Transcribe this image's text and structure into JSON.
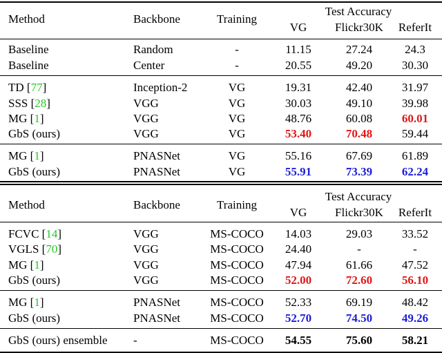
{
  "header": {
    "method": "Method",
    "backbone": "Backbone",
    "training": "Training",
    "test_accuracy": "Test Accuracy",
    "vg": "VG",
    "flickr": "Flickr30K",
    "referit": "ReferIt"
  },
  "top_rows": [
    {
      "method": "Baseline",
      "cite": "",
      "backbone": "Random",
      "training": "-",
      "vg": "11.15",
      "flickr": "27.24",
      "referit": "24.3"
    },
    {
      "method": "Baseline",
      "cite": "",
      "backbone": "Center",
      "training": "-",
      "vg": "20.55",
      "flickr": "49.20",
      "referit": "30.30"
    },
    {
      "method": "TD",
      "cite": "77",
      "backbone": "Inception-2",
      "training": "VG",
      "vg": "19.31",
      "flickr": "42.40",
      "referit": "31.97"
    },
    {
      "method": "SSS",
      "cite": "28",
      "backbone": "VGG",
      "training": "VG",
      "vg": "30.03",
      "flickr": "49.10",
      "referit": "39.98"
    },
    {
      "method": "MG",
      "cite": "1",
      "backbone": "VGG",
      "training": "VG",
      "vg": "48.76",
      "flickr": "60.08",
      "referit": "60.01"
    },
    {
      "method": "GbS (ours)",
      "cite": "",
      "backbone": "VGG",
      "training": "VG",
      "vg": "53.40",
      "flickr": "70.48",
      "referit": "59.44"
    },
    {
      "method": "MG",
      "cite": "1",
      "backbone": "PNASNet",
      "training": "VG",
      "vg": "55.16",
      "flickr": "67.69",
      "referit": "61.89"
    },
    {
      "method": "GbS (ours)",
      "cite": "",
      "backbone": "PNASNet",
      "training": "VG",
      "vg": "55.91",
      "flickr": "73.39",
      "referit": "62.24"
    }
  ],
  "bottom_rows": [
    {
      "method": "FCVC",
      "cite": "14",
      "backbone": "VGG",
      "training": "MS-COCO",
      "vg": "14.03",
      "flickr": "29.03",
      "referit": "33.52"
    },
    {
      "method": "VGLS",
      "cite": "70",
      "backbone": "VGG",
      "training": "MS-COCO",
      "vg": "24.40",
      "flickr": "-",
      "referit": "-"
    },
    {
      "method": "MG",
      "cite": "1",
      "backbone": "VGG",
      "training": "MS-COCO",
      "vg": "47.94",
      "flickr": "61.66",
      "referit": "47.52"
    },
    {
      "method": "GbS (ours)",
      "cite": "",
      "backbone": "VGG",
      "training": "MS-COCO",
      "vg": "52.00",
      "flickr": "72.60",
      "referit": "56.10"
    },
    {
      "method": "MG",
      "cite": "1",
      "backbone": "PNASNet",
      "training": "MS-COCO",
      "vg": "52.33",
      "flickr": "69.19",
      "referit": "48.42"
    },
    {
      "method": "GbS (ours)",
      "cite": "",
      "backbone": "PNASNet",
      "training": "MS-COCO",
      "vg": "52.70",
      "flickr": "74.50",
      "referit": "49.26"
    },
    {
      "method": "GbS (ours) ensemble",
      "cite": "",
      "backbone": "-",
      "training": "MS-COCO",
      "vg": "54.55",
      "flickr": "75.60",
      "referit": "58.21"
    }
  ],
  "styles": {
    "red": "#e01616",
    "blue": "#1d1dd8",
    "cite_green": "#22c922"
  }
}
